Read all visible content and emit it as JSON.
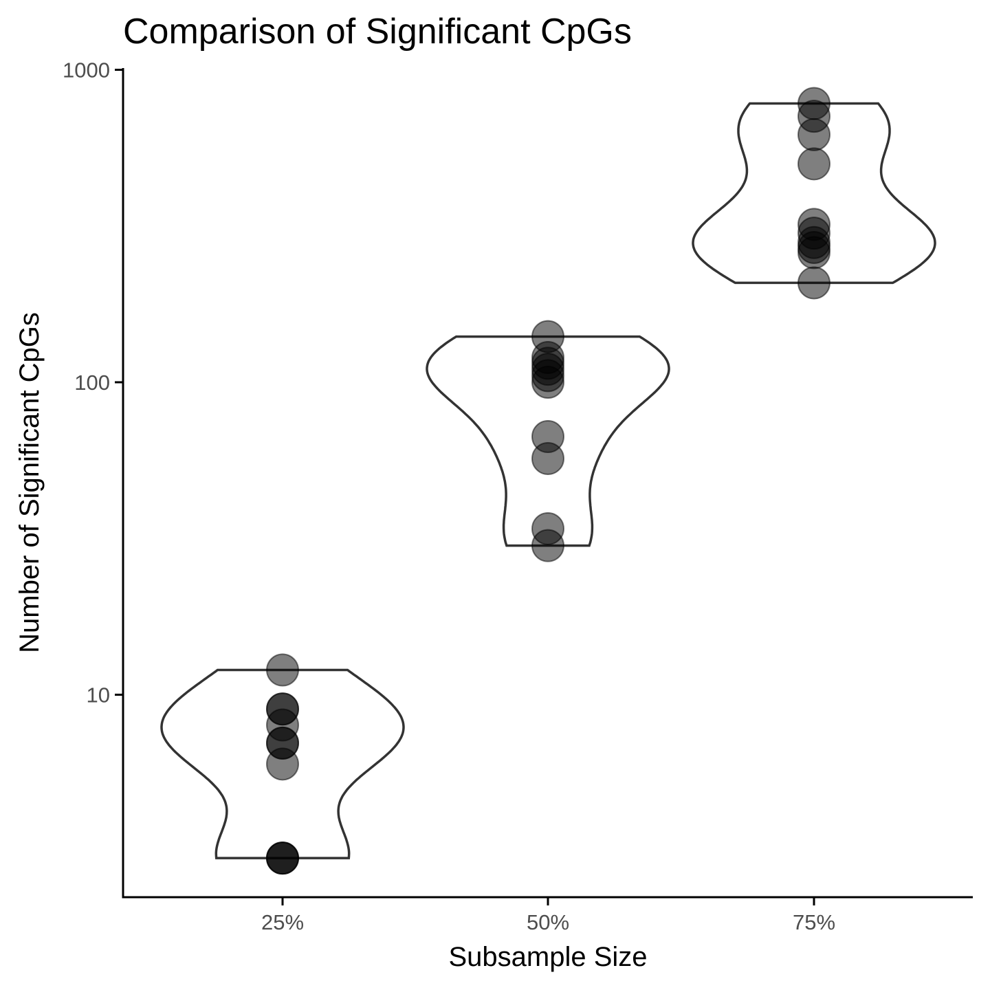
{
  "chart_data": {
    "type": "violin",
    "title": "Comparison of Significant CpGs",
    "xlabel": "Subsample Size",
    "ylabel": "Number of Significant CpGs",
    "y_scale": "log10",
    "ylim": [
      2.6,
      1000
    ],
    "y_ticks": [
      10,
      100,
      1000
    ],
    "y_tick_labels": [
      "10",
      "100",
      "1000"
    ],
    "categories": [
      "25%",
      "50%",
      "75%"
    ],
    "point_color": "#000000",
    "point_alpha": 0.5,
    "violin_outline_color": "#333333",
    "groups": [
      {
        "category": "25%",
        "values": [
          12,
          9,
          9,
          8,
          7,
          7,
          6,
          3,
          3,
          3
        ]
      },
      {
        "category": "50%",
        "values": [
          140,
          120,
          115,
          110,
          105,
          100,
          67,
          57,
          34,
          30
        ]
      },
      {
        "category": "75%",
        "values": [
          780,
          710,
          620,
          500,
          320,
          300,
          280,
          270,
          260,
          208
        ]
      }
    ]
  }
}
